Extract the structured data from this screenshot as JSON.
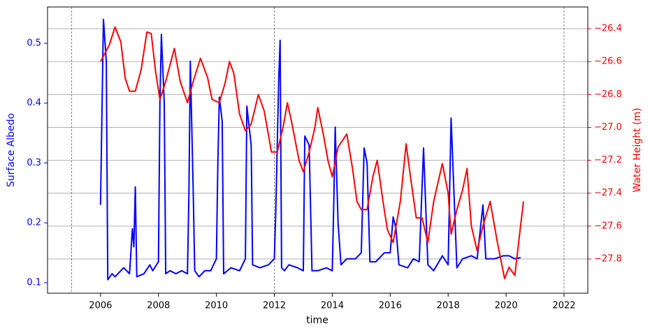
{
  "chart_data": {
    "type": "line",
    "x_label": "time",
    "y_label": "Surface Albedo",
    "y2_label": "Water Height (m)",
    "xlim": [
      2004.17,
      2022.82
    ],
    "xticks": [
      2006,
      2008,
      2010,
      2012,
      2014,
      2016,
      2018,
      2020,
      2022
    ],
    "ylim": [
      0.0825,
      0.5606
    ],
    "yticks": [
      0.1,
      0.2,
      0.3,
      0.4,
      0.5
    ],
    "y2lim": [
      -28.008,
      -26.268
    ],
    "y2ticks": [
      {
        "value": -26.4,
        "label": "−26.4"
      },
      {
        "value": -26.6,
        "label": "−26.6"
      },
      {
        "value": -26.8,
        "label": "−26.8"
      },
      {
        "value": -27.0,
        "label": "−27.0"
      },
      {
        "value": -27.2,
        "label": "−27.2"
      },
      {
        "value": -27.4,
        "label": "−27.4"
      },
      {
        "value": -27.6,
        "label": "−27.6"
      },
      {
        "value": -27.8,
        "label": "−27.8"
      }
    ],
    "grid": "y2",
    "vlines": [
      2005,
      2012,
      2022
    ],
    "ylabel_color": "#0000ff",
    "y2label_color": "#ff0000",
    "series": [
      {
        "name": "Surface Albedo",
        "color": "#0000ff",
        "x": [
          2006.0,
          2006.1,
          2006.2,
          2006.25,
          2006.4,
          2006.5,
          2006.8,
          2007.0,
          2007.1,
          2007.15,
          2007.2,
          2007.25,
          2007.5,
          2007.7,
          2007.8,
          2008.0,
          2008.05,
          2008.1,
          2008.2,
          2008.25,
          2008.4,
          2008.6,
          2008.8,
          2009.0,
          2009.05,
          2009.1,
          2009.2,
          2009.25,
          2009.4,
          2009.6,
          2009.8,
          2010.0,
          2010.05,
          2010.1,
          2010.2,
          2010.25,
          2010.5,
          2010.8,
          2011.0,
          2011.05,
          2011.2,
          2011.25,
          2011.5,
          2011.8,
          2012.0,
          2012.05,
          2012.15,
          2012.2,
          2012.25,
          2012.35,
          2012.5,
          2012.8,
          2013.0,
          2013.05,
          2013.2,
          2013.3,
          2013.5,
          2013.8,
          2014.0,
          2014.05,
          2014.1,
          2014.2,
          2014.3,
          2014.5,
          2014.8,
          2015.0,
          2015.1,
          2015.2,
          2015.3,
          2015.5,
          2015.8,
          2016.0,
          2016.1,
          2016.2,
          2016.3,
          2016.6,
          2016.8,
          2017.0,
          2017.15,
          2017.3,
          2017.5,
          2017.8,
          2018.0,
          2018.1,
          2018.3,
          2018.5,
          2018.8,
          2019.0,
          2019.2,
          2019.3,
          2019.6,
          2019.9,
          2020.1,
          2020.3,
          2020.5
        ],
        "values": [
          0.23,
          0.54,
          0.47,
          0.105,
          0.115,
          0.11,
          0.125,
          0.115,
          0.19,
          0.16,
          0.26,
          0.11,
          0.115,
          0.13,
          0.12,
          0.135,
          0.4,
          0.515,
          0.4,
          0.115,
          0.12,
          0.115,
          0.12,
          0.115,
          0.25,
          0.47,
          0.25,
          0.12,
          0.11,
          0.12,
          0.12,
          0.14,
          0.3,
          0.41,
          0.37,
          0.115,
          0.125,
          0.12,
          0.14,
          0.395,
          0.33,
          0.13,
          0.125,
          0.13,
          0.14,
          0.22,
          0.44,
          0.505,
          0.125,
          0.12,
          0.13,
          0.125,
          0.12,
          0.345,
          0.33,
          0.12,
          0.12,
          0.125,
          0.12,
          0.23,
          0.36,
          0.2,
          0.13,
          0.14,
          0.14,
          0.15,
          0.325,
          0.3,
          0.135,
          0.135,
          0.15,
          0.15,
          0.21,
          0.19,
          0.13,
          0.125,
          0.14,
          0.135,
          0.325,
          0.13,
          0.12,
          0.145,
          0.13,
          0.375,
          0.125,
          0.14,
          0.145,
          0.14,
          0.23,
          0.14,
          0.14,
          0.145,
          0.145,
          0.14,
          0.142
        ]
      },
      {
        "name": "Water Height (m)",
        "color": "#ff0000",
        "axis": "y2",
        "x": [
          2006.0,
          2006.3,
          2006.5,
          2006.7,
          2006.85,
          2007.0,
          2007.2,
          2007.4,
          2007.6,
          2007.75,
          2007.9,
          2008.05,
          2008.25,
          2008.55,
          2008.75,
          2009.0,
          2009.2,
          2009.45,
          2009.7,
          2009.85,
          2010.1,
          2010.3,
          2010.45,
          2010.6,
          2010.8,
          2011.0,
          2011.2,
          2011.45,
          2011.65,
          2011.9,
          2012.1,
          2012.3,
          2012.45,
          2012.6,
          2012.85,
          2013.0,
          2013.2,
          2013.4,
          2013.5,
          2013.7,
          2013.85,
          2014.0,
          2014.2,
          2014.5,
          2014.7,
          2014.85,
          2015.0,
          2015.2,
          2015.4,
          2015.55,
          2015.75,
          2015.9,
          2016.1,
          2016.35,
          2016.55,
          2016.7,
          2016.9,
          2017.1,
          2017.3,
          2017.5,
          2017.8,
          2018.0,
          2018.1,
          2018.3,
          2018.5,
          2018.65,
          2018.8,
          2019.0,
          2019.2,
          2019.45,
          2019.7,
          2019.95,
          2020.1,
          2020.3,
          2020.5,
          2020.6
        ],
        "values": [
          -26.6,
          -26.5,
          -26.39,
          -26.48,
          -26.7,
          -26.78,
          -26.78,
          -26.65,
          -26.42,
          -26.43,
          -26.66,
          -26.83,
          -26.72,
          -26.52,
          -26.72,
          -26.85,
          -26.72,
          -26.58,
          -26.7,
          -26.83,
          -26.85,
          -26.73,
          -26.6,
          -26.67,
          -26.92,
          -27.02,
          -26.98,
          -26.8,
          -26.9,
          -27.15,
          -27.15,
          -27.0,
          -26.85,
          -26.97,
          -27.2,
          -27.27,
          -27.15,
          -27.0,
          -26.88,
          -27.05,
          -27.2,
          -27.3,
          -27.12,
          -27.04,
          -27.25,
          -27.45,
          -27.5,
          -27.5,
          -27.3,
          -27.2,
          -27.45,
          -27.62,
          -27.7,
          -27.45,
          -27.1,
          -27.3,
          -27.55,
          -27.55,
          -27.7,
          -27.45,
          -27.22,
          -27.4,
          -27.65,
          -27.5,
          -27.38,
          -27.25,
          -27.6,
          -27.75,
          -27.6,
          -27.45,
          -27.7,
          -27.92,
          -27.85,
          -27.9,
          -27.6,
          -27.45
        ]
      }
    ]
  }
}
